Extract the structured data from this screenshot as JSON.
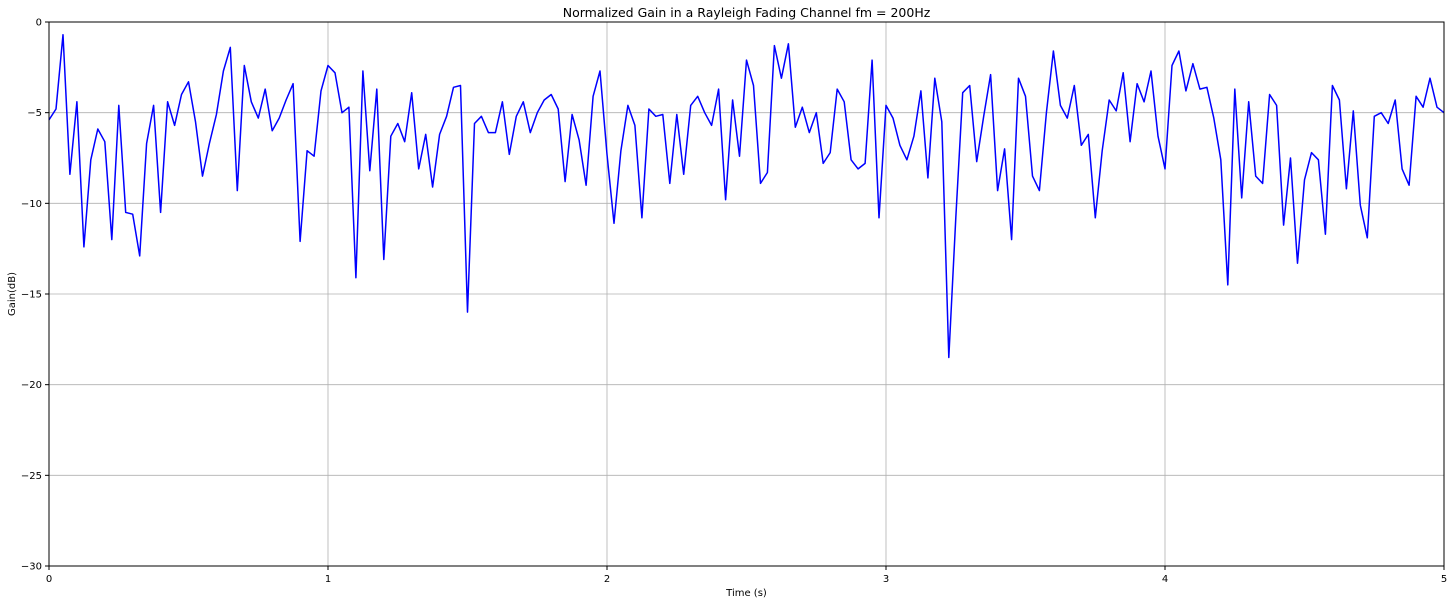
{
  "chart_data": {
    "type": "line",
    "title": "Normalized Gain in a Rayleigh Fading Channel fm = 200Hz",
    "xlabel": "Time (s)",
    "ylabel": "Gain(dB)",
    "xlim": [
      0,
      5
    ],
    "ylim": [
      -30,
      0
    ],
    "xticks": [
      0,
      1,
      2,
      3,
      4,
      5
    ],
    "yticks": [
      0,
      -5,
      -10,
      -15,
      -20,
      -25,
      -30
    ],
    "grid": true,
    "series": [
      {
        "color": "#0000ff",
        "x": [
          0.0,
          0.025,
          0.05,
          0.075,
          0.1,
          0.125,
          0.15,
          0.175,
          0.2,
          0.225,
          0.25,
          0.275,
          0.3,
          0.325,
          0.35,
          0.375,
          0.4,
          0.425,
          0.45,
          0.475,
          0.5,
          0.525,
          0.55,
          0.575,
          0.6,
          0.625,
          0.65,
          0.675,
          0.7,
          0.725,
          0.75,
          0.775,
          0.8,
          0.825,
          0.85,
          0.875,
          0.9,
          0.925,
          0.95,
          0.975,
          1.0,
          1.025,
          1.05,
          1.075,
          1.1,
          1.125,
          1.15,
          1.175,
          1.2,
          1.225,
          1.25,
          1.275,
          1.3,
          1.325,
          1.35,
          1.375,
          1.4,
          1.425,
          1.45,
          1.475,
          1.5,
          1.525,
          1.55,
          1.575,
          1.6,
          1.625,
          1.65,
          1.675,
          1.7,
          1.725,
          1.75,
          1.775,
          1.8,
          1.825,
          1.85,
          1.875,
          1.9,
          1.925,
          1.95,
          1.975,
          2.0,
          2.025,
          2.05,
          2.075,
          2.1,
          2.125,
          2.15,
          2.175,
          2.2,
          2.225,
          2.25,
          2.275,
          2.3,
          2.325,
          2.35,
          2.375,
          2.4,
          2.425,
          2.45,
          2.475,
          2.5,
          2.525,
          2.55,
          2.575,
          2.6,
          2.625,
          2.65,
          2.675,
          2.7,
          2.725,
          2.75,
          2.775,
          2.8,
          2.825,
          2.85,
          2.875,
          2.9,
          2.925,
          2.95,
          2.975,
          3.0,
          3.025,
          3.05,
          3.075,
          3.1,
          3.125,
          3.15,
          3.175,
          3.2,
          3.225,
          3.25,
          3.275,
          3.3,
          3.325,
          3.35,
          3.375,
          3.4,
          3.425,
          3.45,
          3.475,
          3.5,
          3.525,
          3.55,
          3.575,
          3.6,
          3.625,
          3.65,
          3.675,
          3.7,
          3.725,
          3.75,
          3.775,
          3.8,
          3.825,
          3.85,
          3.875,
          3.9,
          3.925,
          3.95,
          3.975,
          4.0,
          4.025,
          4.05,
          4.075,
          4.1,
          4.125,
          4.15,
          4.175,
          4.2,
          4.225,
          4.25,
          4.275,
          4.3,
          4.325,
          4.35,
          4.375,
          4.4,
          4.425,
          4.45,
          4.475,
          4.5,
          4.525,
          4.55,
          4.575,
          4.6,
          4.625,
          4.65,
          4.675,
          4.7,
          4.725,
          4.75,
          4.775,
          4.8,
          4.825,
          4.85,
          4.875,
          4.9,
          4.925,
          4.95,
          4.975,
          5.0
        ],
        "y": [
          -5.4,
          -4.8,
          -0.7,
          -8.4,
          -4.4,
          -12.4,
          -7.6,
          -5.9,
          -6.6,
          -12.0,
          -4.6,
          -10.5,
          -10.6,
          -12.9,
          -6.7,
          -4.6,
          -10.5,
          -4.4,
          -5.7,
          -4.0,
          -3.3,
          -5.5,
          -8.5,
          -6.7,
          -5.1,
          -2.7,
          -1.4,
          -9.3,
          -2.4,
          -4.4,
          -5.3,
          -3.7,
          -6.0,
          -5.3,
          -4.3,
          -3.4,
          -12.1,
          -7.1,
          -7.4,
          -3.8,
          -2.4,
          -2.8,
          -5.0,
          -4.7,
          -14.1,
          -2.7,
          -8.2,
          -3.7,
          -13.1,
          -6.3,
          -5.6,
          -6.6,
          -3.9,
          -8.1,
          -6.2,
          -9.1,
          -6.2,
          -5.2,
          -3.6,
          -3.5,
          -16.0,
          -5.6,
          -5.2,
          -6.1,
          -6.1,
          -4.4,
          -7.3,
          -5.2,
          -4.4,
          -6.1,
          -5.0,
          -4.3,
          -4.0,
          -4.8,
          -8.8,
          -5.1,
          -6.5,
          -9.0,
          -4.1,
          -2.7,
          -7.3,
          -11.1,
          -7.1,
          -4.6,
          -5.7,
          -10.8,
          -4.8,
          -5.2,
          -5.1,
          -8.9,
          -5.1,
          -8.4,
          -4.6,
          -4.1,
          -5.0,
          -5.7,
          -3.7,
          -9.8,
          -4.3,
          -7.4,
          -2.1,
          -3.5,
          -8.9,
          -8.3,
          -1.3,
          -3.1,
          -1.2,
          -5.8,
          -4.7,
          -6.1,
          -5.0,
          -7.8,
          -7.2,
          -3.7,
          -4.4,
          -7.6,
          -8.1,
          -7.8,
          -2.1,
          -10.8,
          -4.6,
          -5.3,
          -6.8,
          -7.6,
          -6.3,
          -3.8,
          -8.6,
          -3.1,
          -5.5,
          -18.5,
          -10.8,
          -3.9,
          -3.5,
          -7.7,
          -5.2,
          -2.9,
          -9.3,
          -7.0,
          -12.0,
          -3.1,
          -4.1,
          -8.5,
          -9.3,
          -5.0,
          -1.6,
          -4.6,
          -5.3,
          -3.5,
          -6.8,
          -6.2,
          -10.8,
          -7.1,
          -4.3,
          -4.9,
          -2.8,
          -6.6,
          -3.4,
          -4.4,
          -2.7,
          -6.3,
          -8.1,
          -2.4,
          -1.6,
          -3.8,
          -2.3,
          -3.7,
          -3.6,
          -5.3,
          -7.6,
          -14.5,
          -3.7,
          -9.7,
          -4.4,
          -8.5,
          -8.9,
          -4.0,
          -4.6,
          -11.2,
          -7.5,
          -13.3,
          -8.7,
          -7.2,
          -7.6,
          -11.7,
          -3.5,
          -4.3,
          -9.2,
          -4.9,
          -10.1,
          -11.9,
          -5.2,
          -5.0,
          -5.6,
          -4.3,
          -8.1,
          -9.0,
          -4.1,
          -4.7,
          -3.1,
          -4.7,
          -5.0
        ]
      }
    ]
  }
}
